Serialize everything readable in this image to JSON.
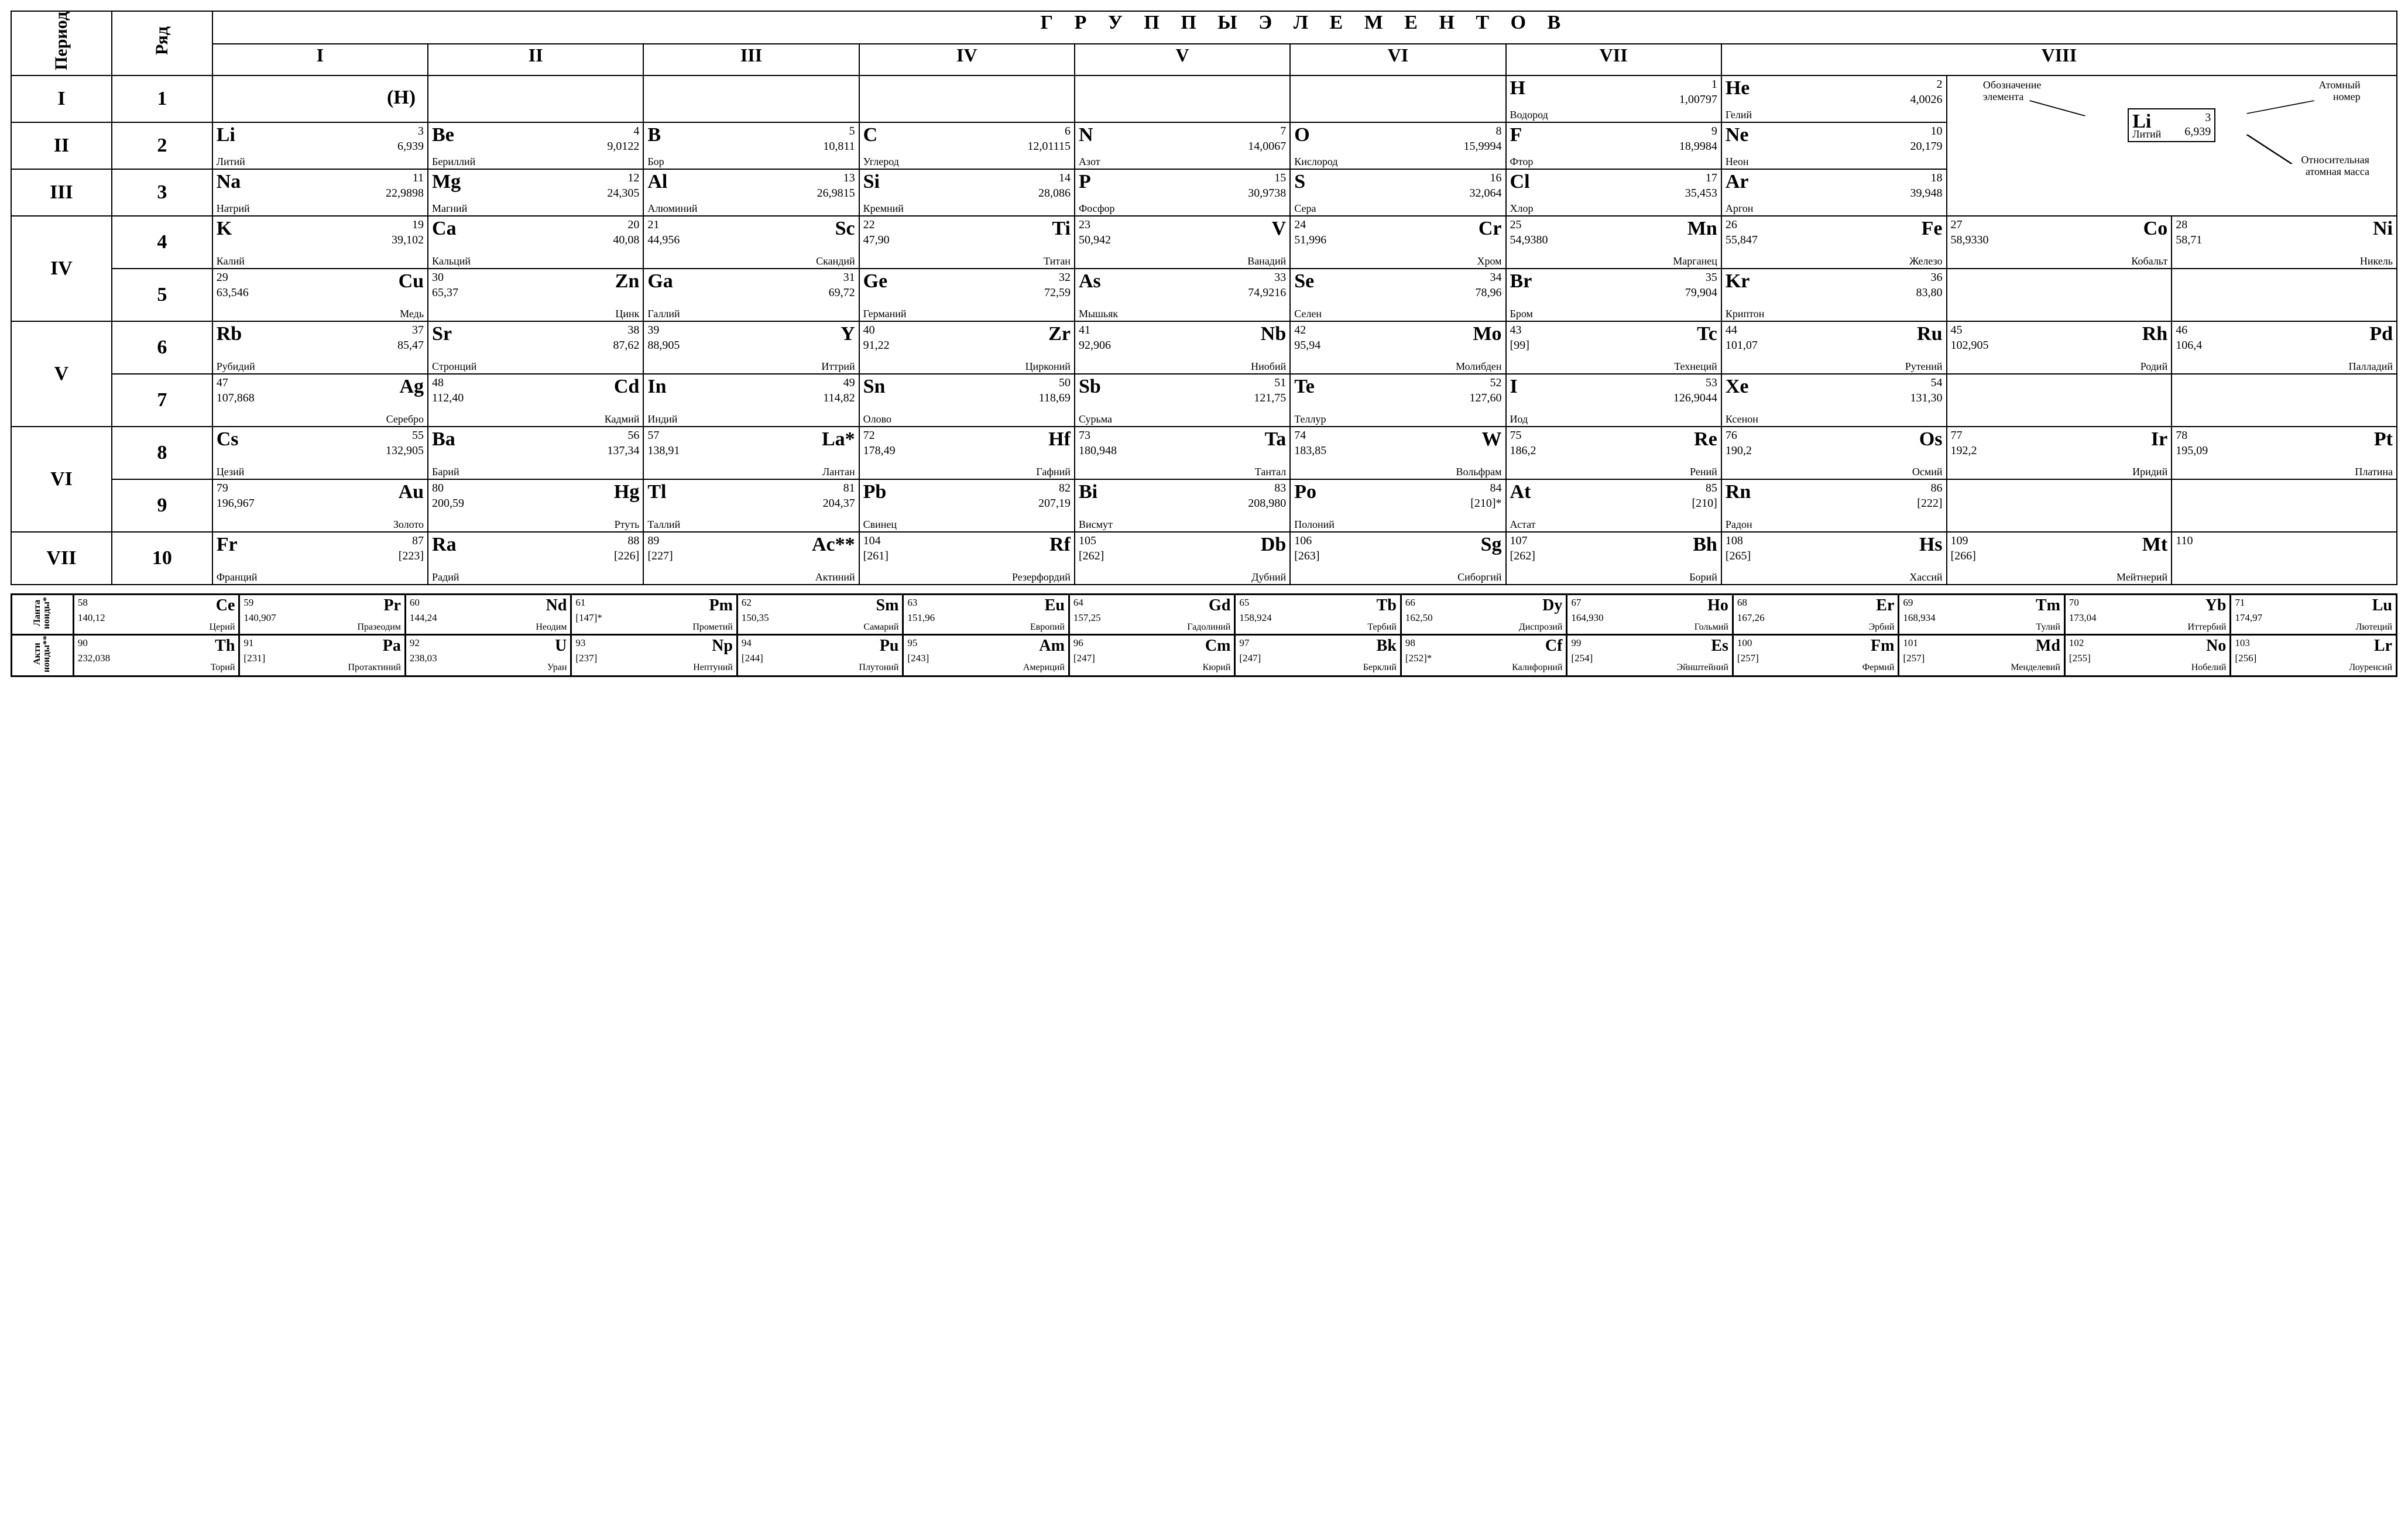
{
  "colors": {
    "line": "#000000",
    "bg": "#ffffff",
    "text": "#000000"
  },
  "font": {
    "family": "Times New Roman",
    "sym_pt": 26,
    "num_pt": 15,
    "mass_pt": 15,
    "name_pt": 14
  },
  "headers": {
    "period": "Период",
    "row": "Ряд",
    "groups_title": "Г Р У П П Ы   Э Л Е М Е Н Т О В",
    "groups": [
      "I",
      "II",
      "III",
      "IV",
      "V",
      "VI",
      "VII",
      "VIII"
    ]
  },
  "legend": {
    "symbol_label": "Обозначение\nэлемента",
    "number_label": "Атомный\nномер",
    "mass_label": "Относительная\nатомная масса",
    "ex_sym": "Li",
    "ex_num": "3",
    "ex_mass": "6,939",
    "ex_name": "Литий"
  },
  "h_paren": "(H)",
  "periods": [
    {
      "period": "I",
      "rows": [
        {
          "r": "1",
          "layout": "A",
          "cells": [
            null,
            null,
            null,
            null,
            null,
            null,
            {
              "sym": "H",
              "num": "1",
              "mass": "1,00797",
              "name": "Водород"
            },
            {
              "sym": "He",
              "num": "2",
              "mass": "4,0026",
              "name": "Гелий"
            }
          ]
        }
      ]
    },
    {
      "period": "II",
      "rows": [
        {
          "r": "2",
          "layout": "A",
          "cells": [
            {
              "sym": "Li",
              "num": "3",
              "mass": "6,939",
              "name": "Литий"
            },
            {
              "sym": "Be",
              "num": "4",
              "mass": "9,0122",
              "name": "Бериллий"
            },
            {
              "sym": "B",
              "num": "5",
              "mass": "10,811",
              "name": "Бор"
            },
            {
              "sym": "C",
              "num": "6",
              "mass": "12,01115",
              "name": "Углерод"
            },
            {
              "sym": "N",
              "num": "7",
              "mass": "14,0067",
              "name": "Азот"
            },
            {
              "sym": "O",
              "num": "8",
              "mass": "15,9994",
              "name": "Кислород"
            },
            {
              "sym": "F",
              "num": "9",
              "mass": "18,9984",
              "name": "Фтор"
            },
            {
              "sym": "Ne",
              "num": "10",
              "mass": "20,179",
              "name": "Неон"
            }
          ]
        }
      ]
    },
    {
      "period": "III",
      "rows": [
        {
          "r": "3",
          "layout": "A",
          "cells": [
            {
              "sym": "Na",
              "num": "11",
              "mass": "22,9898",
              "name": "Натрий"
            },
            {
              "sym": "Mg",
              "num": "12",
              "mass": "24,305",
              "name": "Магний"
            },
            {
              "sym": "Al",
              "num": "13",
              "mass": "26,9815",
              "name": "Алюминий"
            },
            {
              "sym": "Si",
              "num": "14",
              "mass": "28,086",
              "name": "Кремний"
            },
            {
              "sym": "P",
              "num": "15",
              "mass": "30,9738",
              "name": "Фосфор"
            },
            {
              "sym": "S",
              "num": "16",
              "mass": "32,064",
              "name": "Сера"
            },
            {
              "sym": "Cl",
              "num": "17",
              "mass": "35,453",
              "name": "Хлор"
            },
            {
              "sym": "Ar",
              "num": "18",
              "mass": "39,948",
              "name": "Аргон"
            }
          ]
        }
      ]
    },
    {
      "period": "IV",
      "rows": [
        {
          "r": "4",
          "layout": "B",
          "cells": [
            {
              "sym": "K",
              "num": "19",
              "mass": "39,102",
              "name": "Калий",
              "variant": "A"
            },
            {
              "sym": "Ca",
              "num": "20",
              "mass": "40,08",
              "name": "Кальций",
              "variant": "A"
            },
            {
              "sym": "Sc",
              "num": "21",
              "mass": "44,956",
              "name": "Скандий"
            },
            {
              "sym": "Ti",
              "num": "22",
              "mass": "47,90",
              "name": "Титан"
            },
            {
              "sym": "V",
              "num": "23",
              "mass": "50,942",
              "name": "Ванадий"
            },
            {
              "sym": "Cr",
              "num": "24",
              "mass": "51,996",
              "name": "Хром"
            },
            {
              "sym": "Mn",
              "num": "25",
              "mass": "54,9380",
              "name": "Марганец"
            },
            {
              "sym": "Fe",
              "num": "26",
              "mass": "55,847",
              "name": "Железо"
            },
            {
              "sym": "Co",
              "num": "27",
              "mass": "58,9330",
              "name": "Кобальт"
            },
            {
              "sym": "Ni",
              "num": "28",
              "mass": "58,71",
              "name": "Никель"
            }
          ]
        },
        {
          "r": "5",
          "layout": "B",
          "cells": [
            {
              "sym": "Cu",
              "num": "29",
              "mass": "63,546",
              "name": "Медь"
            },
            {
              "sym": "Zn",
              "num": "30",
              "mass": "65,37",
              "name": "Цинк"
            },
            {
              "sym": "Ga",
              "num": "31",
              "mass": "69,72",
              "name": "Галлий",
              "variant": "A"
            },
            {
              "sym": "Ge",
              "num": "32",
              "mass": "72,59",
              "name": "Германий",
              "variant": "A"
            },
            {
              "sym": "As",
              "num": "33",
              "mass": "74,9216",
              "name": "Мышьяк",
              "variant": "A"
            },
            {
              "sym": "Se",
              "num": "34",
              "mass": "78,96",
              "name": "Селен",
              "variant": "A"
            },
            {
              "sym": "Br",
              "num": "35",
              "mass": "79,904",
              "name": "Бром",
              "variant": "A"
            },
            {
              "sym": "Kr",
              "num": "36",
              "mass": "83,80",
              "name": "Криптон",
              "variant": "A"
            },
            null,
            null
          ]
        }
      ]
    },
    {
      "period": "V",
      "rows": [
        {
          "r": "6",
          "layout": "B",
          "cells": [
            {
              "sym": "Rb",
              "num": "37",
              "mass": "85,47",
              "name": "Рубидий",
              "variant": "A"
            },
            {
              "sym": "Sr",
              "num": "38",
              "mass": "87,62",
              "name": "Стронций",
              "variant": "A"
            },
            {
              "sym": "Y",
              "num": "39",
              "mass": "88,905",
              "name": "Иттрий"
            },
            {
              "sym": "Zr",
              "num": "40",
              "mass": "91,22",
              "name": "Цирконий"
            },
            {
              "sym": "Nb",
              "num": "41",
              "mass": "92,906",
              "name": "Ниобий"
            },
            {
              "sym": "Mo",
              "num": "42",
              "mass": "95,94",
              "name": "Молибден"
            },
            {
              "sym": "Tc",
              "num": "43",
              "mass": "[99]",
              "name": "Технеций"
            },
            {
              "sym": "Ru",
              "num": "44",
              "mass": "101,07",
              "name": "Рутений"
            },
            {
              "sym": "Rh",
              "num": "45",
              "mass": "102,905",
              "name": "Родий"
            },
            {
              "sym": "Pd",
              "num": "46",
              "mass": "106,4",
              "name": "Палладий"
            }
          ]
        },
        {
          "r": "7",
          "layout": "B",
          "cells": [
            {
              "sym": "Ag",
              "num": "47",
              "mass": "107,868",
              "name": "Серебро"
            },
            {
              "sym": "Cd",
              "num": "48",
              "mass": "112,40",
              "name": "Кадмий"
            },
            {
              "sym": "In",
              "num": "49",
              "mass": "114,82",
              "name": "Индий",
              "variant": "A"
            },
            {
              "sym": "Sn",
              "num": "50",
              "mass": "118,69",
              "name": "Олово",
              "variant": "A"
            },
            {
              "sym": "Sb",
              "num": "51",
              "mass": "121,75",
              "name": "Сурьма",
              "variant": "A"
            },
            {
              "sym": "Te",
              "num": "52",
              "mass": "127,60",
              "name": "Теллур",
              "variant": "A"
            },
            {
              "sym": "I",
              "num": "53",
              "mass": "126,9044",
              "name": "Иод",
              "variant": "A"
            },
            {
              "sym": "Xe",
              "num": "54",
              "mass": "131,30",
              "name": "Ксенон",
              "variant": "A"
            },
            null,
            null
          ]
        }
      ]
    },
    {
      "period": "VI",
      "rows": [
        {
          "r": "8",
          "layout": "B",
          "cells": [
            {
              "sym": "Cs",
              "num": "55",
              "mass": "132,905",
              "name": "Цезий",
              "variant": "A"
            },
            {
              "sym": "Ba",
              "num": "56",
              "mass": "137,34",
              "name": "Барий",
              "variant": "A"
            },
            {
              "sym": "La*",
              "num": "57",
              "mass": "138,91",
              "name": "Лантан"
            },
            {
              "sym": "Hf",
              "num": "72",
              "mass": "178,49",
              "name": "Гафний"
            },
            {
              "sym": "Ta",
              "num": "73",
              "mass": "180,948",
              "name": "Тантал"
            },
            {
              "sym": "W",
              "num": "74",
              "mass": "183,85",
              "name": "Вольфрам"
            },
            {
              "sym": "Re",
              "num": "75",
              "mass": "186,2",
              "name": "Рений"
            },
            {
              "sym": "Os",
              "num": "76",
              "mass": "190,2",
              "name": "Осмий"
            },
            {
              "sym": "Ir",
              "num": "77",
              "mass": "192,2",
              "name": "Иридий"
            },
            {
              "sym": "Pt",
              "num": "78",
              "mass": "195,09",
              "name": "Платина"
            }
          ]
        },
        {
          "r": "9",
          "layout": "B",
          "cells": [
            {
              "sym": "Au",
              "num": "79",
              "mass": "196,967",
              "name": "Золото"
            },
            {
              "sym": "Hg",
              "num": "80",
              "mass": "200,59",
              "name": "Ртуть"
            },
            {
              "sym": "Tl",
              "num": "81",
              "mass": "204,37",
              "name": "Таллий",
              "variant": "A"
            },
            {
              "sym": "Pb",
              "num": "82",
              "mass": "207,19",
              "name": "Свинец",
              "variant": "A"
            },
            {
              "sym": "Bi",
              "num": "83",
              "mass": "208,980",
              "name": "Висмут",
              "variant": "A"
            },
            {
              "sym": "Po",
              "num": "84",
              "mass": "[210]*",
              "name": "Полоний",
              "variant": "A"
            },
            {
              "sym": "At",
              "num": "85",
              "mass": "[210]",
              "name": "Астат",
              "variant": "A"
            },
            {
              "sym": "Rn",
              "num": "86",
              "mass": "[222]",
              "name": "Радон",
              "variant": "A"
            },
            null,
            null
          ]
        }
      ]
    },
    {
      "period": "VII",
      "rows": [
        {
          "r": "10",
          "layout": "B",
          "cells": [
            {
              "sym": "Fr",
              "num": "87",
              "mass": "[223]",
              "name": "Франций",
              "variant": "A"
            },
            {
              "sym": "Ra",
              "num": "88",
              "mass": "[226]",
              "name": "Радий",
              "variant": "A"
            },
            {
              "sym": "Ac**",
              "num": "89",
              "mass": "[227]",
              "name": "Актиний"
            },
            {
              "sym": "Rf",
              "num": "104",
              "mass": "[261]",
              "name": "Резерфордий"
            },
            {
              "sym": "Db",
              "num": "105",
              "mass": "[262]",
              "name": "Дубний"
            },
            {
              "sym": "Sg",
              "num": "106",
              "mass": "[263]",
              "name": "Сиборгий"
            },
            {
              "sym": "Bh",
              "num": "107",
              "mass": "[262]",
              "name": "Борий"
            },
            {
              "sym": "Hs",
              "num": "108",
              "mass": "[265]",
              "name": "Хассий"
            },
            {
              "sym": "Mt",
              "num": "109",
              "mass": "[266]",
              "name": "Мейтнерий"
            },
            {
              "sym": "",
              "num": "110",
              "mass": "",
              "name": ""
            }
          ]
        }
      ]
    }
  ],
  "fblock": [
    {
      "label": "Ланта\nноиды*",
      "cells": [
        {
          "sym": "Ce",
          "num": "58",
          "mass": "140,12",
          "name": "Церий"
        },
        {
          "sym": "Pr",
          "num": "59",
          "mass": "140,907",
          "name": "Празеодим"
        },
        {
          "sym": "Nd",
          "num": "60",
          "mass": "144,24",
          "name": "Неодим"
        },
        {
          "sym": "Pm",
          "num": "61",
          "mass": "[147]*",
          "name": "Прометий"
        },
        {
          "sym": "Sm",
          "num": "62",
          "mass": "150,35",
          "name": "Самарий"
        },
        {
          "sym": "Eu",
          "num": "63",
          "mass": "151,96",
          "name": "Европий"
        },
        {
          "sym": "Gd",
          "num": "64",
          "mass": "157,25",
          "name": "Гадолиний"
        },
        {
          "sym": "Tb",
          "num": "65",
          "mass": "158,924",
          "name": "Тербий"
        },
        {
          "sym": "Dy",
          "num": "66",
          "mass": "162,50",
          "name": "Диспрозий"
        },
        {
          "sym": "Ho",
          "num": "67",
          "mass": "164,930",
          "name": "Гольмий"
        },
        {
          "sym": "Er",
          "num": "68",
          "mass": "167,26",
          "name": "Эрбий"
        },
        {
          "sym": "Tm",
          "num": "69",
          "mass": "168,934",
          "name": "Тулий"
        },
        {
          "sym": "Yb",
          "num": "70",
          "mass": "173,04",
          "name": "Иттербий"
        },
        {
          "sym": "Lu",
          "num": "71",
          "mass": "174,97",
          "name": "Лютеций"
        }
      ]
    },
    {
      "label": "Акти\nноиды**",
      "cells": [
        {
          "sym": "Th",
          "num": "90",
          "mass": "232,038",
          "name": "Торий"
        },
        {
          "sym": "Pa",
          "num": "91",
          "mass": "[231]",
          "name": "Протактиний"
        },
        {
          "sym": "U",
          "num": "92",
          "mass": "238,03",
          "name": "Уран"
        },
        {
          "sym": "Np",
          "num": "93",
          "mass": "[237]",
          "name": "Нептуний"
        },
        {
          "sym": "Pu",
          "num": "94",
          "mass": "[244]",
          "name": "Плутоний"
        },
        {
          "sym": "Am",
          "num": "95",
          "mass": "[243]",
          "name": "Америций"
        },
        {
          "sym": "Cm",
          "num": "96",
          "mass": "[247]",
          "name": "Кюрий"
        },
        {
          "sym": "Bk",
          "num": "97",
          "mass": "[247]",
          "name": "Берклий"
        },
        {
          "sym": "Cf",
          "num": "98",
          "mass": "[252]*",
          "name": "Калифорний"
        },
        {
          "sym": "Es",
          "num": "99",
          "mass": "[254]",
          "name": "Эйнштейний"
        },
        {
          "sym": "Fm",
          "num": "100",
          "mass": "[257]",
          "name": "Фермий"
        },
        {
          "sym": "Md",
          "num": "101",
          "mass": "[257]",
          "name": "Менделевий"
        },
        {
          "sym": "No",
          "num": "102",
          "mass": "[255]",
          "name": "Нобелий"
        },
        {
          "sym": "Lr",
          "num": "103",
          "mass": "[256]",
          "name": "Лоуренсий"
        }
      ]
    }
  ]
}
